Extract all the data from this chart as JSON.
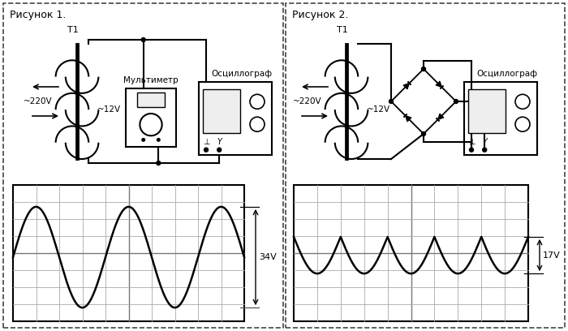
{
  "bg_color": "#ffffff",
  "panel1_title": "Рисунок 1.",
  "panel2_title": "Рисунок 2.",
  "label1": "34V",
  "label2": "17V",
  "multimeter_label": "Мультиметр",
  "oscilloscope_label": "Осциллограф",
  "oscilloscope2_label": "Осциллограф",
  "t1_label": "T1",
  "v220_label": "~220V",
  "v12_label": "~12V",
  "t1_label2": "T1",
  "v220_label2": "~220V",
  "v12_label2": "~12V"
}
